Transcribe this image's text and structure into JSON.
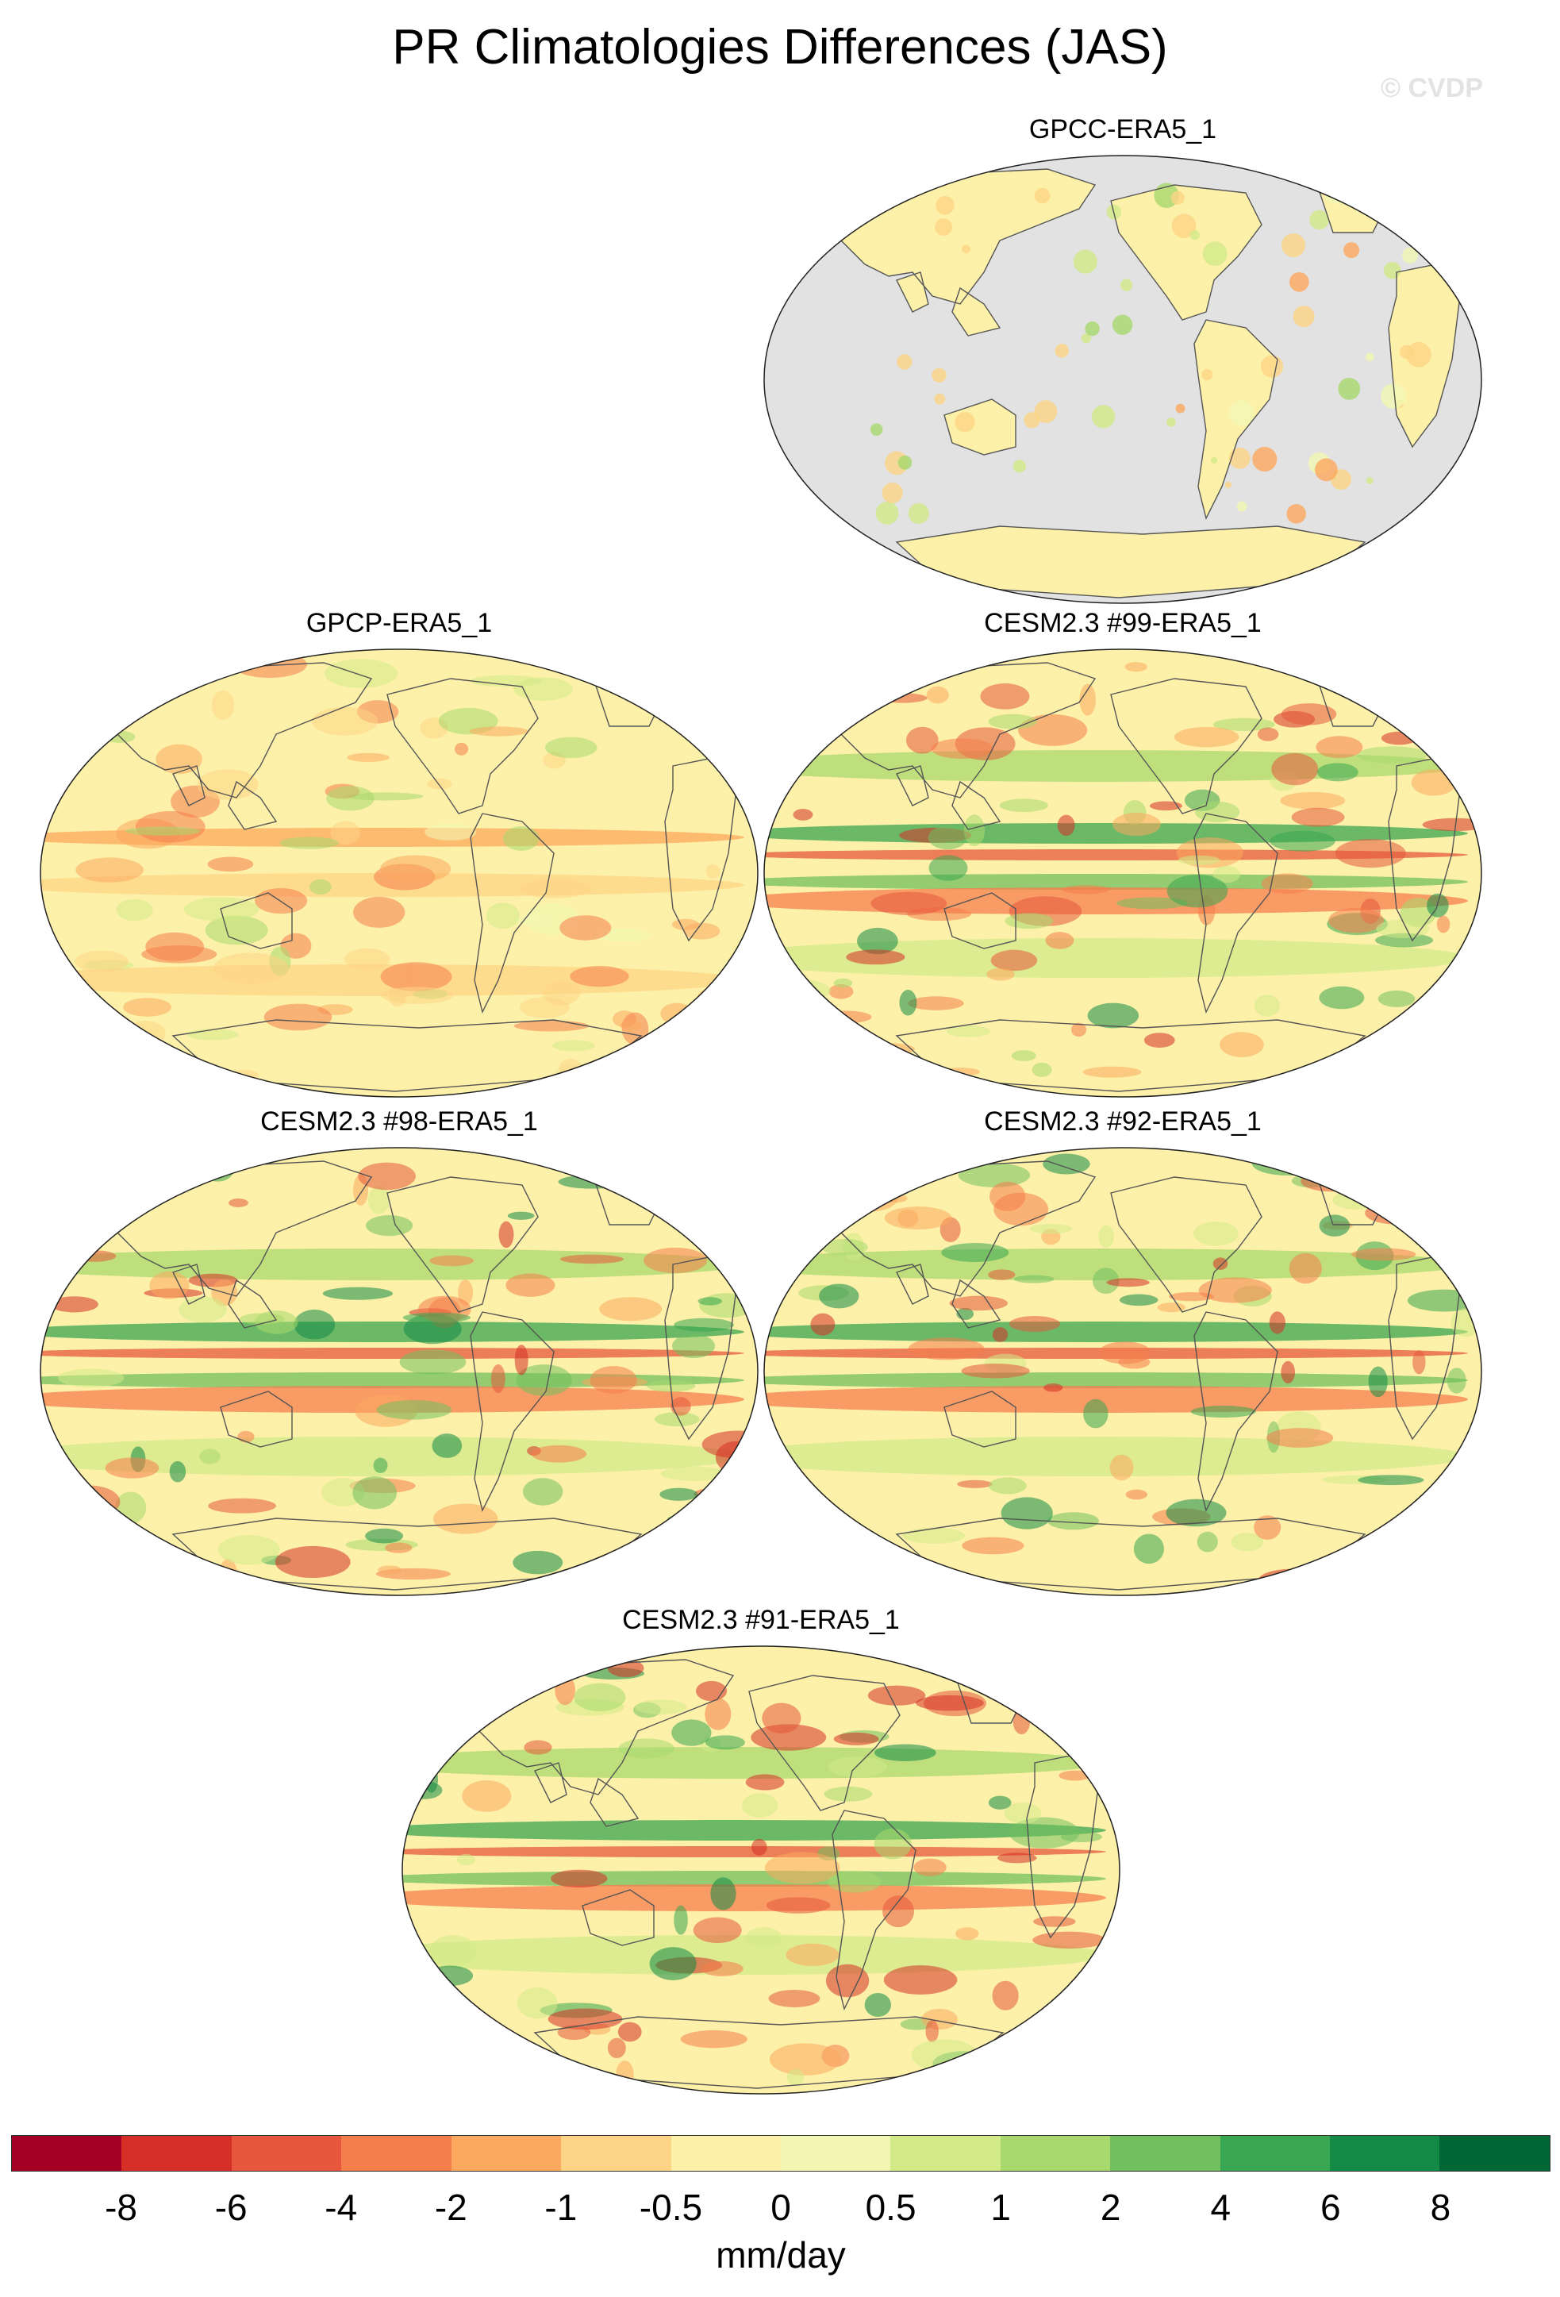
{
  "title": "PR Climatologies Differences (JAS)",
  "watermark": "© CVDP",
  "panels": [
    {
      "title": "GPCC-ERA5_1",
      "ocean_masked": true
    },
    {
      "title": "GPCP-ERA5_1",
      "ocean_masked": false
    },
    {
      "title": "CESM2.3 #99-ERA5_1",
      "ocean_masked": false
    },
    {
      "title": "CESM2.3 #98-ERA5_1",
      "ocean_masked": false
    },
    {
      "title": "CESM2.3 #92-ERA5_1",
      "ocean_masked": false
    },
    {
      "title": "CESM2.3 #91-ERA5_1",
      "ocean_masked": false
    }
  ],
  "colorbar": {
    "ticks": [
      "-8",
      "-6",
      "-4",
      "-2",
      "-1",
      "-0.5",
      "0",
      "0.5",
      "1",
      "2",
      "4",
      "6",
      "8"
    ],
    "colors": [
      "#a50026",
      "#d62f27",
      "#e6573d",
      "#f57e4d",
      "#fca85e",
      "#fdd485",
      "#fdf1a9",
      "#f1f7b3",
      "#d2ea88",
      "#a8d86e",
      "#71bf5f",
      "#39a651",
      "#138a46",
      "#006837"
    ],
    "label": "mm/day"
  },
  "colors": {
    "missing_land_ocean": "#e2e2e2",
    "coastline": "#555555"
  }
}
